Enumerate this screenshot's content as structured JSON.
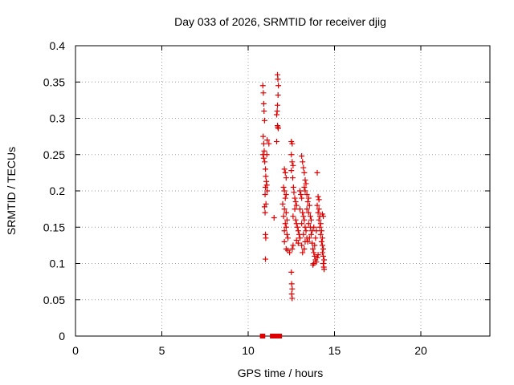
{
  "chart_data": {
    "type": "scatter",
    "title": "Day 033 of 2026, SRMTID for receiver djig",
    "xlabel": "GPS time / hours",
    "ylabel": "SRMTID / TECUs",
    "xlim": [
      0,
      24
    ],
    "ylim": [
      0,
      0.4
    ],
    "xticks": [
      0,
      5,
      10,
      15,
      20
    ],
    "xtick_labels": [
      "0",
      "5",
      "10",
      "15",
      "20"
    ],
    "yticks": [
      0,
      0.05,
      0.1,
      0.15,
      0.2,
      0.25,
      0.3,
      0.35,
      0.4
    ],
    "ytick_labels": [
      "0",
      "0.05",
      "0.1",
      "0.15",
      "0.2",
      "0.25",
      "0.3",
      "0.35",
      "0.4"
    ],
    "grid": true,
    "marker": "plus",
    "colors": {
      "points": "#dd0000",
      "grid": "#a0a0a0",
      "axes": "#000000"
    },
    "series": [
      {
        "points": [
          [
            10.85,
            0.345
          ],
          [
            10.88,
            0.335
          ],
          [
            10.9,
            0.32
          ],
          [
            10.92,
            0.31
          ],
          [
            10.95,
            0.297
          ],
          [
            10.87,
            0.275
          ],
          [
            10.9,
            0.265
          ],
          [
            10.93,
            0.255
          ],
          [
            10.86,
            0.25
          ],
          [
            10.9,
            0.245
          ],
          [
            10.96,
            0.24
          ],
          [
            11.0,
            0.23
          ],
          [
            11.02,
            0.22
          ],
          [
            11.05,
            0.213
          ],
          [
            11.08,
            0.208
          ],
          [
            11.0,
            0.205
          ],
          [
            10.98,
            0.195
          ],
          [
            11.03,
            0.182
          ],
          [
            10.95,
            0.178
          ],
          [
            10.98,
            0.17
          ],
          [
            11.0,
            0.14
          ],
          [
            11.02,
            0.135
          ],
          [
            11.0,
            0.106
          ],
          [
            11.1,
            0.27
          ],
          [
            11.2,
            0.265
          ],
          [
            11.08,
            0.25
          ],
          [
            11.1,
            0.2
          ],
          [
            11.7,
            0.36
          ],
          [
            11.72,
            0.354
          ],
          [
            11.75,
            0.345
          ],
          [
            11.73,
            0.332
          ],
          [
            11.7,
            0.318
          ],
          [
            11.68,
            0.31
          ],
          [
            11.65,
            0.305
          ],
          [
            11.7,
            0.29
          ],
          [
            11.72,
            0.288
          ],
          [
            11.74,
            0.286
          ],
          [
            11.65,
            0.268
          ],
          [
            11.5,
            0.163
          ],
          [
            12.1,
            0.23
          ],
          [
            12.15,
            0.225
          ],
          [
            12.2,
            0.218
          ],
          [
            12.05,
            0.205
          ],
          [
            12.1,
            0.2
          ],
          [
            12.2,
            0.195
          ],
          [
            12.15,
            0.19
          ],
          [
            12.0,
            0.182
          ],
          [
            12.1,
            0.175
          ],
          [
            12.2,
            0.17
          ],
          [
            12.05,
            0.165
          ],
          [
            12.25,
            0.16
          ],
          [
            12.15,
            0.155
          ],
          [
            12.2,
            0.15
          ],
          [
            12.1,
            0.145
          ],
          [
            12.25,
            0.14
          ],
          [
            12.3,
            0.135
          ],
          [
            12.1,
            0.13
          ],
          [
            12.2,
            0.12
          ],
          [
            12.3,
            0.118
          ],
          [
            12.4,
            0.115
          ],
          [
            12.5,
            0.268
          ],
          [
            12.55,
            0.265
          ],
          [
            12.5,
            0.25
          ],
          [
            12.55,
            0.24
          ],
          [
            12.6,
            0.235
          ],
          [
            12.5,
            0.228
          ],
          [
            12.58,
            0.218
          ],
          [
            12.62,
            0.205
          ],
          [
            12.65,
            0.198
          ],
          [
            12.7,
            0.19
          ],
          [
            12.75,
            0.185
          ],
          [
            12.8,
            0.18
          ],
          [
            12.7,
            0.175
          ],
          [
            12.6,
            0.165
          ],
          [
            12.75,
            0.16
          ],
          [
            12.8,
            0.155
          ],
          [
            12.85,
            0.15
          ],
          [
            12.9,
            0.145
          ],
          [
            12.95,
            0.14
          ],
          [
            13.0,
            0.135
          ],
          [
            12.8,
            0.132
          ],
          [
            12.9,
            0.128
          ],
          [
            12.6,
            0.125
          ],
          [
            12.55,
            0.12
          ],
          [
            12.5,
            0.088
          ],
          [
            12.52,
            0.072
          ],
          [
            12.55,
            0.065
          ],
          [
            12.52,
            0.058
          ],
          [
            12.55,
            0.052
          ],
          [
            13.0,
            0.2
          ],
          [
            13.05,
            0.195
          ],
          [
            13.1,
            0.19
          ],
          [
            13.0,
            0.175
          ],
          [
            13.15,
            0.17
          ],
          [
            13.2,
            0.165
          ],
          [
            13.25,
            0.16
          ],
          [
            13.1,
            0.155
          ],
          [
            13.3,
            0.15
          ],
          [
            13.35,
            0.145
          ],
          [
            13.2,
            0.14
          ],
          [
            13.4,
            0.135
          ],
          [
            13.3,
            0.13
          ],
          [
            13.1,
            0.125
          ],
          [
            13.25,
            0.12
          ],
          [
            13.15,
            0.115
          ],
          [
            13.1,
            0.248
          ],
          [
            13.15,
            0.24
          ],
          [
            13.2,
            0.232
          ],
          [
            13.25,
            0.225
          ],
          [
            13.3,
            0.215
          ],
          [
            13.35,
            0.21
          ],
          [
            13.25,
            0.205
          ],
          [
            13.3,
            0.2
          ],
          [
            13.4,
            0.195
          ],
          [
            13.5,
            0.19
          ],
          [
            13.45,
            0.185
          ],
          [
            13.55,
            0.18
          ],
          [
            13.4,
            0.175
          ],
          [
            13.5,
            0.17
          ],
          [
            13.6,
            0.165
          ],
          [
            13.65,
            0.16
          ],
          [
            13.5,
            0.155
          ],
          [
            13.6,
            0.15
          ],
          [
            13.7,
            0.145
          ],
          [
            13.65,
            0.14
          ],
          [
            13.55,
            0.135
          ],
          [
            13.45,
            0.13
          ],
          [
            13.7,
            0.128
          ],
          [
            13.75,
            0.12
          ],
          [
            13.8,
            0.115
          ],
          [
            13.85,
            0.11
          ],
          [
            13.9,
            0.105
          ],
          [
            13.8,
            0.1
          ],
          [
            13.75,
            0.098
          ],
          [
            13.95,
            0.102
          ],
          [
            14.0,
            0.108
          ],
          [
            14.05,
            0.112
          ],
          [
            13.85,
            0.125
          ],
          [
            13.9,
            0.135
          ],
          [
            13.95,
            0.145
          ],
          [
            13.8,
            0.15
          ],
          [
            14.0,
            0.225
          ],
          [
            14.05,
            0.192
          ],
          [
            14.1,
            0.188
          ],
          [
            14.0,
            0.18
          ],
          [
            14.1,
            0.175
          ],
          [
            14.05,
            0.17
          ],
          [
            14.15,
            0.165
          ],
          [
            14.1,
            0.16
          ],
          [
            14.2,
            0.155
          ],
          [
            14.15,
            0.15
          ],
          [
            14.25,
            0.145
          ],
          [
            14.2,
            0.14
          ],
          [
            14.3,
            0.135
          ],
          [
            14.25,
            0.13
          ],
          [
            14.3,
            0.125
          ],
          [
            14.35,
            0.12
          ],
          [
            14.3,
            0.115
          ],
          [
            14.35,
            0.11
          ],
          [
            14.4,
            0.105
          ],
          [
            14.35,
            0.1
          ],
          [
            14.38,
            0.095
          ],
          [
            14.4,
            0.092
          ],
          [
            14.3,
            0.168
          ],
          [
            14.35,
            0.165
          ]
        ]
      },
      {
        "marker": "square",
        "points": [
          [
            10.82,
            0
          ],
          [
            10.85,
            0
          ],
          [
            11.4,
            0
          ],
          [
            11.55,
            0
          ],
          [
            11.78,
            0
          ],
          [
            11.82,
            0
          ]
        ]
      }
    ]
  }
}
